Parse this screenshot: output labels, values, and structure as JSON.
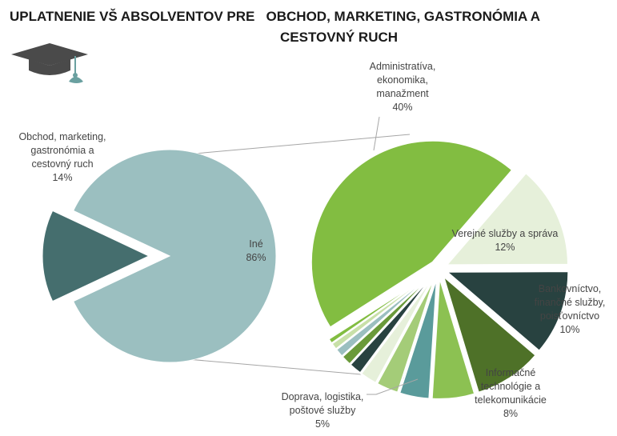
{
  "title_line1": "UPLATNENIE VŠ ABSOLVENTOV PRE   OBCHOD, MARKETING, GASTRONÓMIA A",
  "title_line2": "CESTOVNÝ RUCH",
  "logo_icon": "graduation-cap-icon",
  "chart_data": {
    "type": "pie",
    "subtype": "pie-of-pie",
    "title": "UPLATNENIE VŠ ABSOLVENTOV PRE OBCHOD, MARKETING, GASTRONÓMIA A CESTOVNÝ RUCH",
    "main_pie": [
      {
        "label_lines": [
          "Obchod, marketing,",
          "gastronómia a",
          "cestovný ruch"
        ],
        "pct_label": "14%",
        "value": 14,
        "color": "#456e6e",
        "exploded": true
      },
      {
        "label_lines": [
          "Iné"
        ],
        "pct_label": "86%",
        "value": 86,
        "color": "#9bbfc0",
        "exploded": false
      }
    ],
    "secondary_pie": [
      {
        "label_lines": [
          "Administratíva,",
          "ekonomika,",
          "manažment"
        ],
        "pct_label": "40%",
        "value": 40,
        "color": "#82bd41"
      },
      {
        "label_lines": [
          "Verejné služby a správa"
        ],
        "pct_label": "12%",
        "value": 12,
        "color": "#e6f0da"
      },
      {
        "label_lines": [
          "Bankovníctvo,",
          "finančné služby,",
          "poisťovníctvo"
        ],
        "pct_label": "10%",
        "value": 10,
        "color": "#284240"
      },
      {
        "label_lines": [
          "Informačné",
          "technológie a",
          "telekomunikácie"
        ],
        "pct_label": "8%",
        "value": 8,
        "color": "#4e7128"
      },
      {
        "label_lines": [
          "Doprava, logistika,",
          "poštové služby"
        ],
        "pct_label": "5%",
        "value": 5,
        "color": "#8cc152"
      },
      {
        "label_lines": [],
        "pct_label": "",
        "value": 3.5,
        "color": "#5a9b9b"
      },
      {
        "label_lines": [],
        "pct_label": "",
        "value": 2.6,
        "color": "#a4cc78"
      },
      {
        "label_lines": [],
        "pct_label": "",
        "value": 2.0,
        "color": "#e6f0da"
      },
      {
        "label_lines": [],
        "pct_label": "",
        "value": 1.5,
        "color": "#284240"
      },
      {
        "label_lines": [],
        "pct_label": "",
        "value": 1.2,
        "color": "#6a9a3a"
      },
      {
        "label_lines": [],
        "pct_label": "",
        "value": 1.0,
        "color": "#9bbfc0"
      },
      {
        "label_lines": [],
        "pct_label": "",
        "value": 0.8,
        "color": "#c8e0a8"
      },
      {
        "label_lines": [],
        "pct_label": "",
        "value": 0.6,
        "color": "#82bd41"
      }
    ]
  }
}
